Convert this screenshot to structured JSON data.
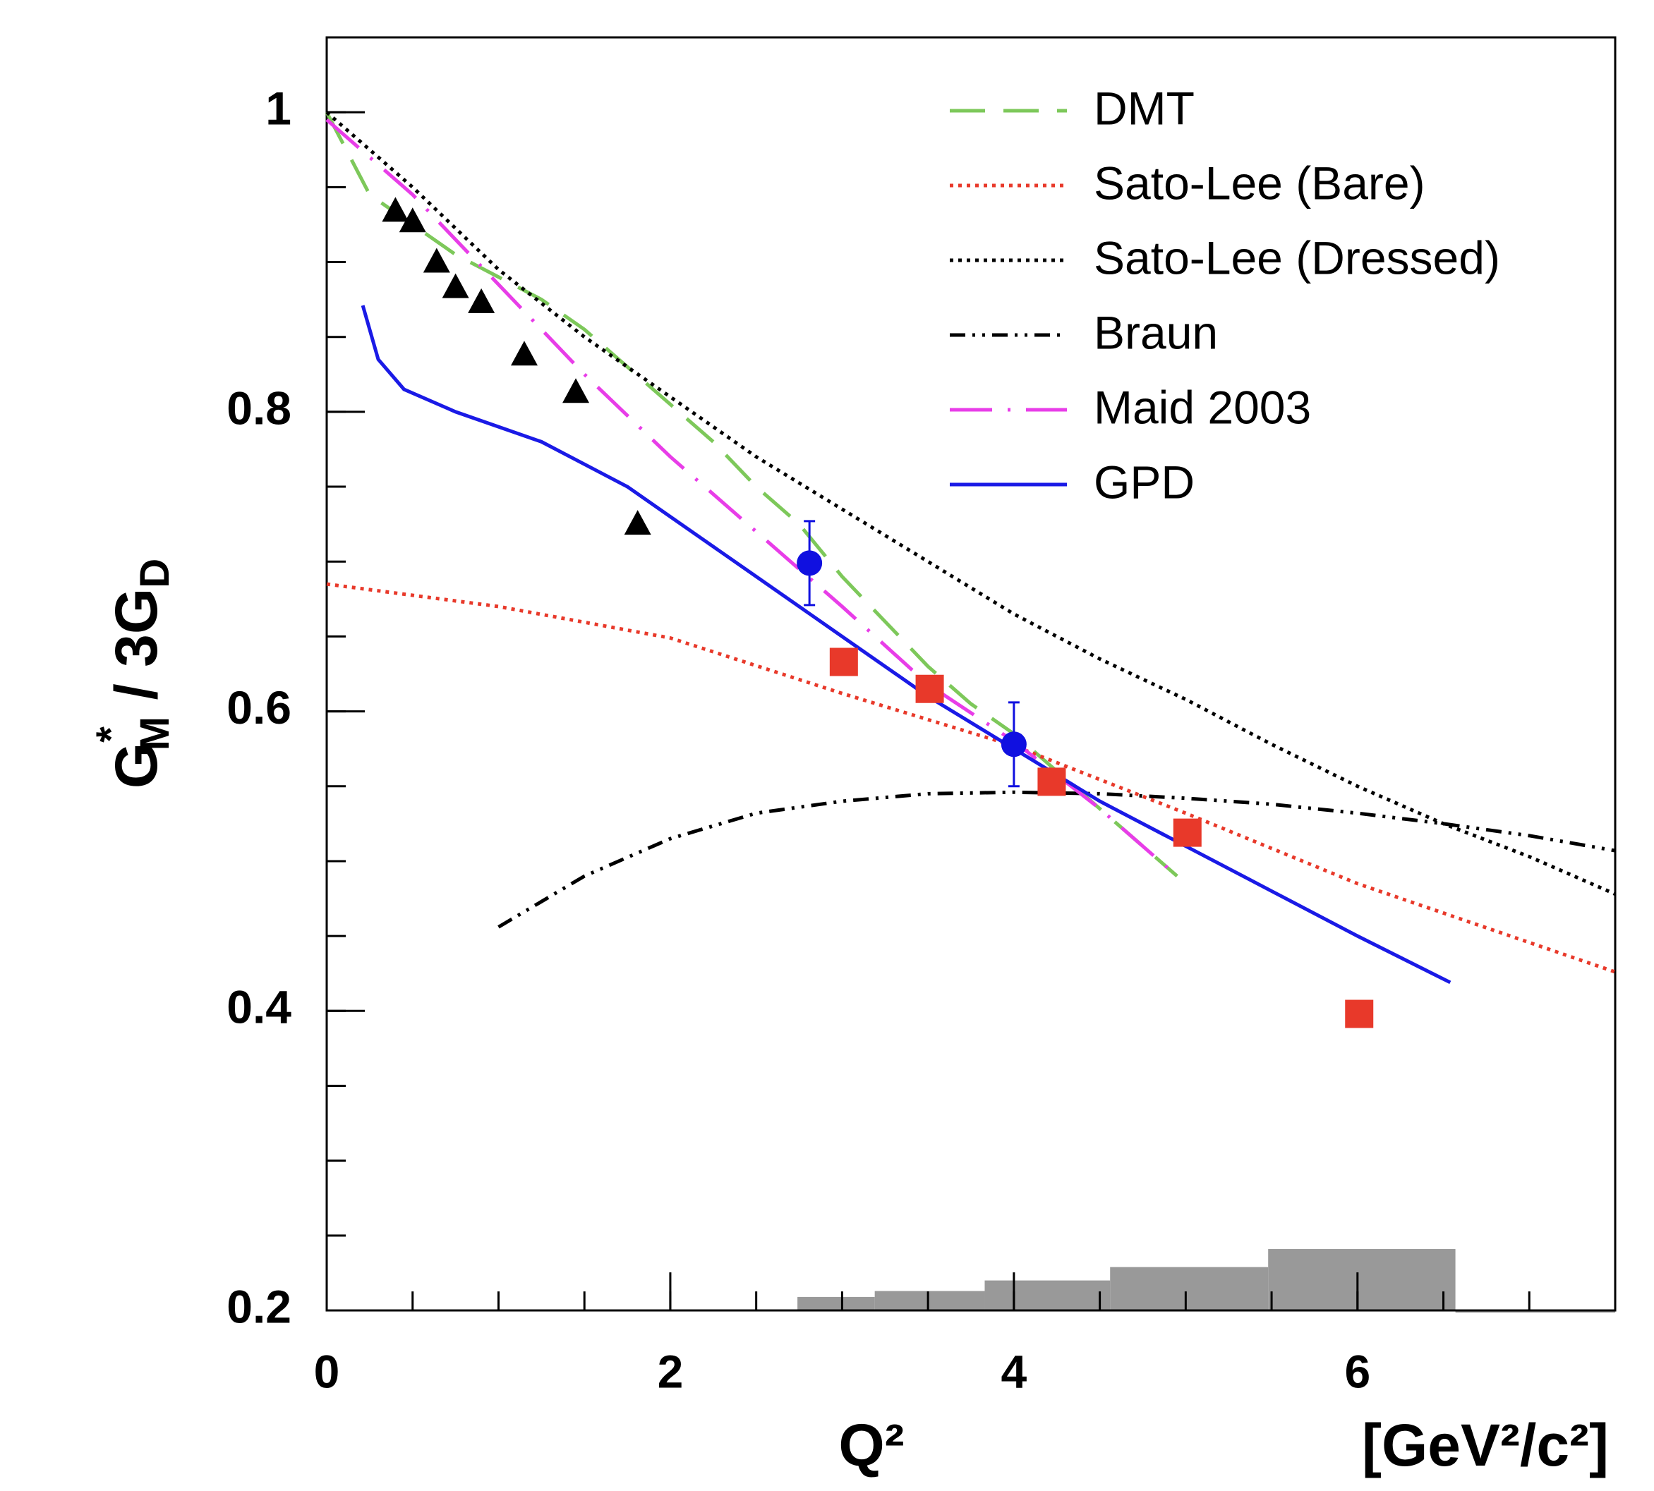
{
  "chart_data": {
    "type": "line",
    "xlim": [
      0,
      7.5
    ],
    "ylim": [
      0.2,
      1.05
    ],
    "xticks": [
      0,
      2,
      4,
      6
    ],
    "yticks": [
      0.2,
      0.4,
      0.6,
      0.8,
      1
    ],
    "x_minor_step": 0.5,
    "y_minor_step": 0.05,
    "xlabel": "Q²",
    "xunit": "[GeV²/c²]",
    "ylabel_parts": [
      "G",
      "*",
      "M",
      " / 3G",
      "D"
    ],
    "legend": "upper right",
    "series": [
      {
        "type": "line",
        "name": "DMT",
        "color": "#7dc85a",
        "dash": "50 26",
        "x": [
          0,
          0.25,
          0.5,
          0.75,
          1.0,
          1.25,
          1.5,
          1.75,
          2.0,
          2.25,
          2.5,
          2.75,
          3.0,
          3.25,
          3.5,
          3.75,
          4.0,
          4.25,
          4.5,
          4.75,
          4.95
        ],
        "values": [
          1.0,
          0.945,
          0.925,
          0.905,
          0.89,
          0.875,
          0.855,
          0.83,
          0.805,
          0.78,
          0.75,
          0.725,
          0.69,
          0.66,
          0.63,
          0.605,
          0.585,
          0.56,
          0.535,
          0.51,
          0.49
        ]
      },
      {
        "type": "line",
        "name": "Sato-Lee (Bare)",
        "color": "#e8392a",
        "dash": "5 7",
        "x": [
          0,
          1,
          2,
          3,
          4,
          5,
          6,
          7.5
        ],
        "values": [
          0.685,
          0.67,
          0.649,
          0.612,
          0.577,
          0.532,
          0.485,
          0.426
        ]
      },
      {
        "type": "line",
        "name": "Sato-Lee (Dressed)",
        "color": "#000000",
        "dash": "5 7",
        "x": [
          0,
          0.5,
          1,
          1.5,
          2,
          2.5,
          3,
          3.5,
          4,
          4.5,
          5,
          5.5,
          6,
          6.5,
          7,
          7.5
        ],
        "values": [
          1.0,
          0.95,
          0.895,
          0.85,
          0.81,
          0.77,
          0.735,
          0.7,
          0.665,
          0.635,
          0.608,
          0.578,
          0.55,
          0.525,
          0.503,
          0.478
        ]
      },
      {
        "type": "line",
        "name": "Braun",
        "color": "#000000",
        "dash": "22 10 4 10 4 10",
        "x": [
          1.0,
          1.5,
          2,
          2.5,
          3,
          3.5,
          4,
          4.5,
          5,
          5.5,
          6,
          6.5,
          7,
          7.5
        ],
        "values": [
          0.456,
          0.49,
          0.515,
          0.532,
          0.54,
          0.545,
          0.546,
          0.545,
          0.542,
          0.538,
          0.532,
          0.525,
          0.517,
          0.507
        ]
      },
      {
        "type": "line",
        "name": "Maid 2003",
        "color": "#e83de8",
        "dash": "60 22 4 22",
        "x": [
          0,
          0.5,
          1,
          1.5,
          2,
          2.5,
          3,
          3.5,
          4,
          4.5,
          4.95
        ],
        "values": [
          0.995,
          0.945,
          0.885,
          0.825,
          0.77,
          0.72,
          0.67,
          0.618,
          0.58,
          0.535,
          0.49
        ]
      },
      {
        "type": "line",
        "name": "GPD",
        "color": "#1a1ae6",
        "dash": "none",
        "x": [
          0.21,
          0.3,
          0.45,
          0.75,
          1,
          1.25,
          1.5,
          1.75,
          2,
          2.5,
          3,
          3.5,
          4,
          4.5,
          5,
          5.5,
          6,
          6.54
        ],
        "values": [
          0.871,
          0.835,
          0.815,
          0.8,
          0.79,
          0.78,
          0.765,
          0.75,
          0.73,
          0.69,
          0.65,
          0.61,
          0.575,
          0.54,
          0.51,
          0.48,
          0.45,
          0.419
        ]
      },
      {
        "type": "scatter",
        "marker": "triangle",
        "color": "#000000",
        "x": [
          0.4,
          0.5,
          0.64,
          0.75,
          0.9,
          1.15,
          1.45,
          1.81
        ],
        "values": [
          0.934,
          0.927,
          0.9,
          0.883,
          0.873,
          0.838,
          0.813,
          0.725
        ]
      },
      {
        "type": "scatter",
        "marker": "circle",
        "color": "#1010e0",
        "x": [
          2.81,
          4.0
        ],
        "values": [
          0.699,
          0.578
        ],
        "errors": [
          0.028,
          0.028
        ]
      },
      {
        "type": "scatter",
        "marker": "square",
        "color": "#e8392a",
        "x": [
          3.01,
          3.51,
          4.22,
          5.01,
          6.01
        ],
        "values": [
          0.633,
          0.615,
          0.553,
          0.519,
          0.398
        ]
      },
      {
        "type": "bar",
        "color": "#999999",
        "bins": [
          2.74,
          3.19,
          3.83,
          4.56,
          5.48,
          6.57,
          7.5
        ],
        "values": [
          0.209,
          0.213,
          0.22,
          0.229,
          0.241,
          0.2
        ]
      }
    ]
  }
}
